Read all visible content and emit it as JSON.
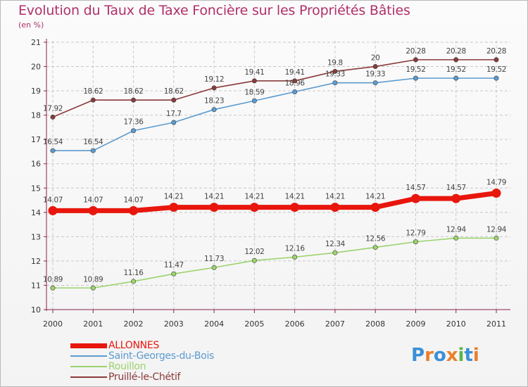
{
  "header": {
    "title": "Evolution du Taux de Taxe Foncière sur les Propriétés Bâties",
    "unit": "(en %)"
  },
  "logo": {
    "text": "Proxiti",
    "colors": [
      "#3b8fd6",
      "#e8812b",
      "#3b8fd6",
      "#e8812b",
      "#58b548",
      "#3b8fd6",
      "#e8812b"
    ]
  },
  "colors": {
    "title": "#b0306a",
    "axis": "#8a2150",
    "grid": "#c8c8c8"
  },
  "chart_data": {
    "type": "line",
    "title": "Evolution du Taux de Taxe Foncière sur les Propriétés Bâties",
    "ylabel": "(en %)",
    "xlabel": "",
    "x": [
      "2000",
      "2001",
      "2002",
      "2003",
      "2004",
      "2005",
      "2006",
      "2007",
      "2008",
      "2009",
      "2010",
      "2011"
    ],
    "ylim": [
      10,
      21
    ],
    "yticks": [
      "10",
      "11",
      "12",
      "13",
      "14",
      "15",
      "16",
      "17",
      "18",
      "19",
      "20",
      "21"
    ],
    "grid": "horizontal dashed",
    "legend_position": "bottom-left",
    "series": [
      {
        "name": "ALLONNES",
        "color": "#e8160c",
        "values": [
          14.07,
          14.07,
          14.07,
          14.21,
          14.21,
          14.21,
          14.21,
          14.21,
          14.21,
          14.57,
          14.57,
          14.79
        ],
        "labels": [
          "14.07",
          "14.07",
          "14.07",
          "14.21",
          "14.21",
          "14.21",
          "14.21",
          "14.21",
          "14.21",
          "14.57",
          "14.57",
          "14.79"
        ]
      },
      {
        "name": "Saint-Georges-du-Bois",
        "color": "#5b9bd0",
        "values": [
          16.54,
          16.54,
          17.36,
          17.7,
          18.23,
          18.59,
          18.96,
          19.33,
          19.33,
          19.52,
          19.52,
          19.52
        ],
        "labels": [
          "16.54",
          "16.54",
          "17.36",
          "17.7",
          "18.23",
          "18.59",
          "18.96",
          "19.33",
          "19.33",
          "19.52",
          "19.52",
          "19.52"
        ]
      },
      {
        "name": "Rouillon",
        "color": "#9bd36c",
        "values": [
          10.89,
          10.89,
          11.16,
          11.47,
          11.73,
          12.02,
          12.16,
          12.34,
          12.56,
          12.79,
          12.94,
          12.94
        ],
        "labels": [
          "10.89",
          "10.89",
          "11.16",
          "11.47",
          "11.73",
          "12.02",
          "12.16",
          "12.34",
          "12.56",
          "12.79",
          "12.94",
          "12.94"
        ]
      },
      {
        "name": "Pruillé-le-Chétif",
        "color": "#8a3a3a",
        "values": [
          17.92,
          18.62,
          18.62,
          18.62,
          19.12,
          19.41,
          19.41,
          19.8,
          20,
          20.28,
          20.28,
          20.28
        ],
        "labels": [
          "17.92",
          "18.62",
          "18.62",
          "18.62",
          "19.12",
          "19.41",
          "19.41",
          "19.8",
          "20",
          "20.28",
          "20.28",
          "20.28"
        ]
      }
    ]
  }
}
